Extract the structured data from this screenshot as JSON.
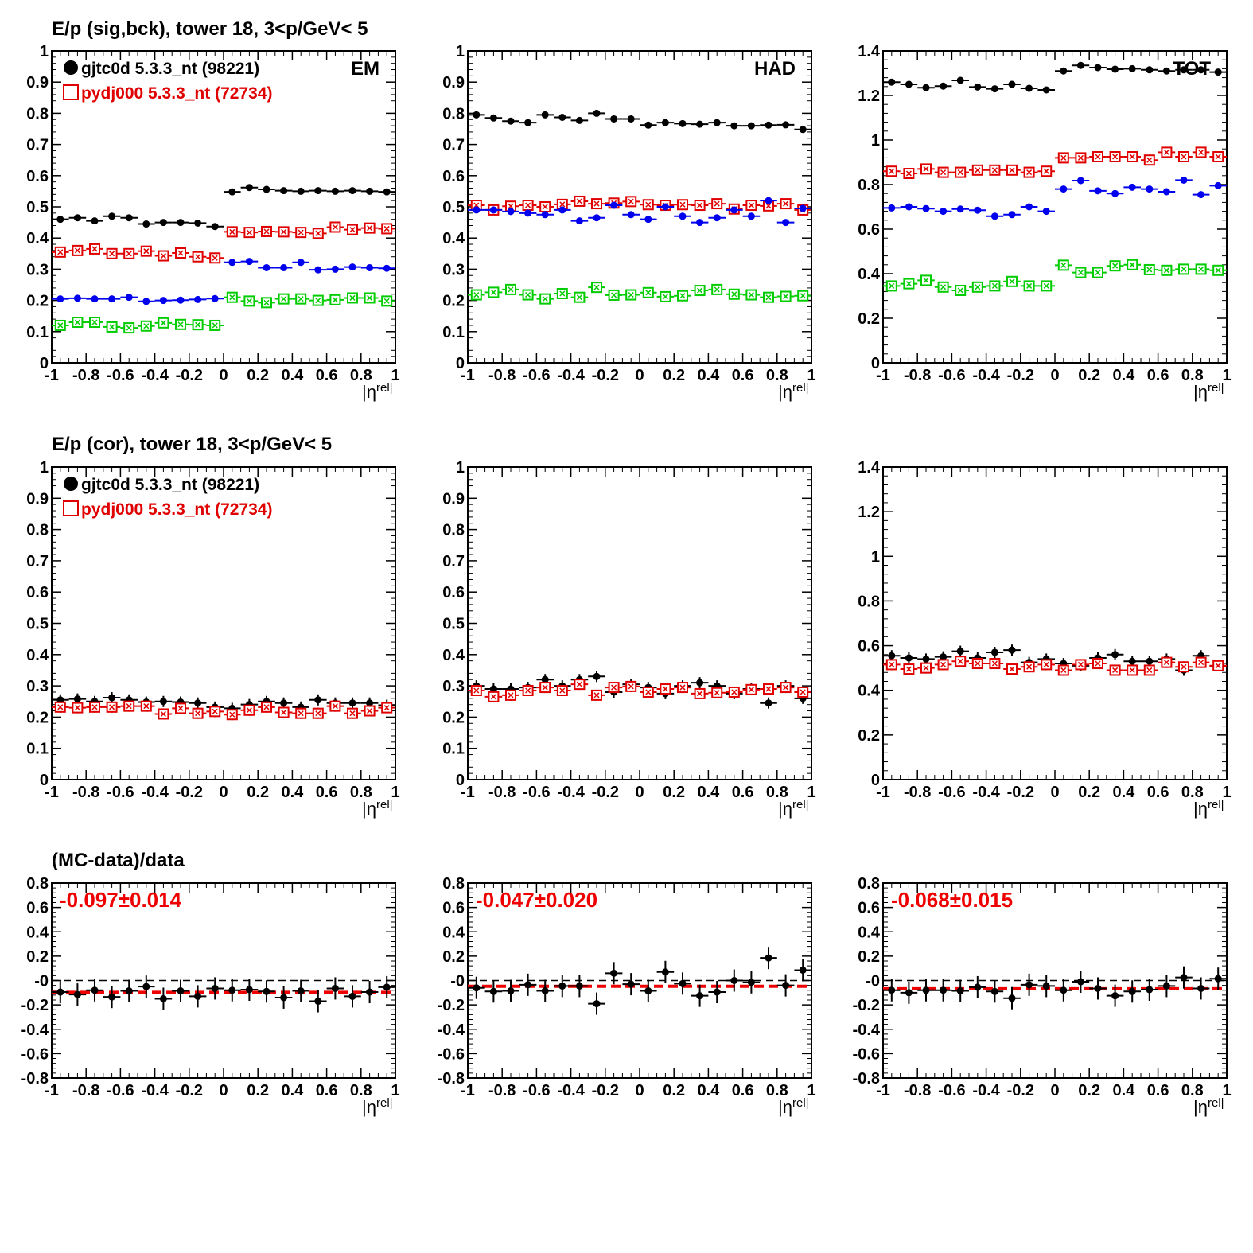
{
  "colors": {
    "data": "#000000",
    "mc": "#e00000",
    "blue": "#0000ee",
    "green": "#00cc00",
    "fit": "#ee0000"
  },
  "rows": [
    {
      "title": "E/p (sig,bck), tower 18,  3<p/GeV< 5",
      "legend": [
        {
          "marker": "filled-circle",
          "text": "gjtc0d 5.3.3_nt (98221)"
        },
        {
          "marker": "open-square",
          "text": "pydj000 5.3.3_nt (72734)"
        }
      ]
    },
    {
      "title": "E/p (cor), tower 18,  3<p/GeV< 5",
      "legend": [
        {
          "marker": "filled-circle",
          "text": "gjtc0d 5.3.3_nt (98221)"
        },
        {
          "marker": "open-square",
          "text": "pydj000 5.3.3_nt (72734)"
        }
      ]
    },
    {
      "title": "(MC-data)/data",
      "legend": []
    }
  ],
  "chart_data": [
    {
      "type": "scatter",
      "row": 0,
      "col": 0,
      "corner_label": "EM",
      "xlabel": "|η",
      "xlabel_sup": "rel|",
      "xlim": [
        -1,
        1
      ],
      "ylim": [
        0,
        1
      ],
      "xticks": [
        "-1",
        "-0.8",
        "-0.6",
        "-0.4",
        "-0.2",
        "0",
        "0.2",
        "0.4",
        "0.6",
        "0.8",
        "1"
      ],
      "yticks": [
        "0",
        "0.1",
        "0.2",
        "0.3",
        "0.4",
        "0.5",
        "0.6",
        "0.7",
        "0.8",
        "0.9",
        "1"
      ],
      "x": [
        -0.95,
        -0.85,
        -0.75,
        -0.65,
        -0.55,
        -0.45,
        -0.35,
        -0.25,
        -0.15,
        -0.05,
        0.05,
        0.15,
        0.25,
        0.35,
        0.45,
        0.55,
        0.65,
        0.75,
        0.85,
        0.95
      ],
      "series": [
        {
          "name": "gjtc0d 5.3.3_nt (98221)",
          "style": "black-dot",
          "values": [
            0.46,
            0.465,
            0.455,
            0.47,
            0.465,
            0.445,
            0.45,
            0.45,
            0.448,
            0.437,
            0.548,
            0.562,
            0.556,
            0.552,
            0.55,
            0.552,
            0.55,
            0.552,
            0.55,
            0.548
          ]
        },
        {
          "name": "pydj000 5.3.3_nt (72734)",
          "style": "red-square",
          "values": [
            0.355,
            0.36,
            0.365,
            0.35,
            0.35,
            0.358,
            0.343,
            0.352,
            0.34,
            0.336,
            0.42,
            0.418,
            0.421,
            0.42,
            0.418,
            0.415,
            0.435,
            0.427,
            0.432,
            0.43
          ]
        },
        {
          "style": "blue-dot",
          "values": [
            0.205,
            0.207,
            0.205,
            0.205,
            0.21,
            0.197,
            0.2,
            0.201,
            0.203,
            0.206,
            0.322,
            0.325,
            0.305,
            0.305,
            0.322,
            0.298,
            0.3,
            0.307,
            0.305,
            0.303
          ]
        },
        {
          "style": "green-square",
          "values": [
            0.12,
            0.13,
            0.13,
            0.115,
            0.112,
            0.118,
            0.128,
            0.123,
            0.122,
            0.12,
            0.21,
            0.198,
            0.193,
            0.205,
            0.205,
            0.2,
            0.202,
            0.208,
            0.208,
            0.198
          ]
        }
      ]
    },
    {
      "type": "scatter",
      "row": 0,
      "col": 1,
      "corner_label": "HAD",
      "xlabel": "|η",
      "xlabel_sup": "rel|",
      "xlim": [
        -1,
        1
      ],
      "ylim": [
        0,
        1
      ],
      "xticks": [
        "-1",
        "-0.8",
        "-0.6",
        "-0.4",
        "-0.2",
        "0",
        "0.2",
        "0.4",
        "0.6",
        "0.8",
        "1"
      ],
      "yticks": [
        "0",
        "0.1",
        "0.2",
        "0.3",
        "0.4",
        "0.5",
        "0.6",
        "0.7",
        "0.8",
        "0.9",
        "1"
      ],
      "x": [
        -0.95,
        -0.85,
        -0.75,
        -0.65,
        -0.55,
        -0.45,
        -0.35,
        -0.25,
        -0.15,
        -0.05,
        0.05,
        0.15,
        0.25,
        0.35,
        0.45,
        0.55,
        0.65,
        0.75,
        0.85,
        0.95
      ],
      "series": [
        {
          "name": "gjtc0d 5.3.3_nt (98221)",
          "style": "black-dot",
          "values": [
            0.795,
            0.785,
            0.775,
            0.77,
            0.795,
            0.787,
            0.777,
            0.8,
            0.782,
            0.782,
            0.762,
            0.77,
            0.767,
            0.765,
            0.77,
            0.76,
            0.76,
            0.762,
            0.763,
            0.748
          ]
        },
        {
          "name": "pydj000 5.3.3_nt (72734)",
          "style": "red-square",
          "values": [
            0.505,
            0.49,
            0.502,
            0.505,
            0.5,
            0.508,
            0.518,
            0.51,
            0.512,
            0.517,
            0.507,
            0.505,
            0.507,
            0.505,
            0.51,
            0.493,
            0.505,
            0.503,
            0.51,
            0.49
          ]
        },
        {
          "style": "blue-dot",
          "values": [
            0.49,
            0.49,
            0.485,
            0.48,
            0.475,
            0.49,
            0.455,
            0.465,
            0.505,
            0.475,
            0.46,
            0.5,
            0.47,
            0.45,
            0.465,
            0.49,
            0.47,
            0.52,
            0.45,
            0.495
          ]
        },
        {
          "style": "green-square",
          "values": [
            0.218,
            0.226,
            0.235,
            0.218,
            0.205,
            0.222,
            0.21,
            0.242,
            0.217,
            0.218,
            0.225,
            0.212,
            0.215,
            0.232,
            0.235,
            0.22,
            0.218,
            0.21,
            0.213,
            0.215
          ]
        }
      ]
    },
    {
      "type": "scatter",
      "row": 0,
      "col": 2,
      "corner_label": "TOT",
      "xlabel": "|η",
      "xlabel_sup": "rel|",
      "xlim": [
        -1,
        1
      ],
      "ylim": [
        0,
        1.4
      ],
      "xticks": [
        "-1",
        "-0.8",
        "-0.6",
        "-0.4",
        "-0.2",
        "0",
        "0.2",
        "0.4",
        "0.6",
        "0.8",
        "1"
      ],
      "yticks": [
        "0",
        "0.2",
        "0.4",
        "0.6",
        "0.8",
        "1",
        "1.2",
        "1.4"
      ],
      "x": [
        -0.95,
        -0.85,
        -0.75,
        -0.65,
        -0.55,
        -0.45,
        -0.35,
        -0.25,
        -0.15,
        -0.05,
        0.05,
        0.15,
        0.25,
        0.35,
        0.45,
        0.55,
        0.65,
        0.75,
        0.85,
        0.95
      ],
      "series": [
        {
          "name": "gjtc0d 5.3.3_nt (98221)",
          "style": "black-dot",
          "values": [
            1.26,
            1.25,
            1.235,
            1.242,
            1.268,
            1.238,
            1.23,
            1.25,
            1.232,
            1.225,
            1.31,
            1.335,
            1.325,
            1.318,
            1.32,
            1.315,
            1.31,
            1.315,
            1.315,
            1.305
          ]
        },
        {
          "name": "pydj000 5.3.3_nt (72734)",
          "style": "red-square",
          "values": [
            0.86,
            0.85,
            0.87,
            0.855,
            0.855,
            0.865,
            0.865,
            0.865,
            0.855,
            0.86,
            0.92,
            0.92,
            0.925,
            0.925,
            0.925,
            0.91,
            0.945,
            0.925,
            0.945,
            0.925
          ]
        },
        {
          "style": "blue-dot",
          "values": [
            0.695,
            0.7,
            0.692,
            0.68,
            0.69,
            0.685,
            0.658,
            0.665,
            0.7,
            0.68,
            0.78,
            0.818,
            0.772,
            0.76,
            0.788,
            0.78,
            0.768,
            0.82,
            0.755,
            0.795
          ]
        },
        {
          "style": "green-square",
          "values": [
            0.345,
            0.355,
            0.37,
            0.34,
            0.325,
            0.34,
            0.345,
            0.365,
            0.345,
            0.345,
            0.438,
            0.405,
            0.405,
            0.435,
            0.44,
            0.418,
            0.415,
            0.42,
            0.42,
            0.415
          ]
        }
      ]
    },
    {
      "type": "scatter",
      "row": 1,
      "col": 0,
      "xlabel": "|η",
      "xlabel_sup": "rel|",
      "xlim": [
        -1,
        1
      ],
      "ylim": [
        0,
        1
      ],
      "xticks": [
        "-1",
        "-0.8",
        "-0.6",
        "-0.4",
        "-0.2",
        "0",
        "0.2",
        "0.4",
        "0.6",
        "0.8",
        "1"
      ],
      "yticks": [
        "0",
        "0.1",
        "0.2",
        "0.3",
        "0.4",
        "0.5",
        "0.6",
        "0.7",
        "0.8",
        "0.9",
        "1"
      ],
      "x": [
        -0.95,
        -0.85,
        -0.75,
        -0.65,
        -0.55,
        -0.45,
        -0.35,
        -0.25,
        -0.15,
        -0.05,
        0.05,
        0.15,
        0.25,
        0.35,
        0.45,
        0.55,
        0.65,
        0.75,
        0.85,
        0.95
      ],
      "series": [
        {
          "name": "gjtc0d 5.3.3_nt (98221)",
          "style": "black-dot",
          "values": [
            0.255,
            0.258,
            0.25,
            0.262,
            0.255,
            0.248,
            0.25,
            0.248,
            0.245,
            0.232,
            0.228,
            0.24,
            0.25,
            0.245,
            0.232,
            0.255,
            0.245,
            0.245,
            0.245,
            0.238
          ]
        },
        {
          "name": "pydj000 5.3.3_nt (72734)",
          "style": "red-square",
          "values": [
            0.232,
            0.23,
            0.232,
            0.232,
            0.235,
            0.235,
            0.21,
            0.228,
            0.212,
            0.218,
            0.208,
            0.222,
            0.232,
            0.215,
            0.212,
            0.212,
            0.235,
            0.212,
            0.22,
            0.23
          ]
        }
      ]
    },
    {
      "type": "scatter",
      "row": 1,
      "col": 1,
      "xlabel": "|η",
      "xlabel_sup": "rel|",
      "xlim": [
        -1,
        1
      ],
      "ylim": [
        0,
        1
      ],
      "xticks": [
        "-1",
        "-0.8",
        "-0.6",
        "-0.4",
        "-0.2",
        "0",
        "0.2",
        "0.4",
        "0.6",
        "0.8",
        "1"
      ],
      "yticks": [
        "0",
        "0.1",
        "0.2",
        "0.3",
        "0.4",
        "0.5",
        "0.6",
        "0.7",
        "0.8",
        "0.9",
        "1"
      ],
      "x": [
        -0.95,
        -0.85,
        -0.75,
        -0.65,
        -0.55,
        -0.45,
        -0.35,
        -0.25,
        -0.15,
        -0.05,
        0.05,
        0.15,
        0.25,
        0.35,
        0.45,
        0.55,
        0.65,
        0.75,
        0.85,
        0.95
      ],
      "series": [
        {
          "name": "gjtc0d 5.3.3_nt (98221)",
          "style": "black-dot",
          "values": [
            0.3,
            0.29,
            0.29,
            0.295,
            0.32,
            0.3,
            0.32,
            0.33,
            0.28,
            0.305,
            0.295,
            0.275,
            0.3,
            0.31,
            0.3,
            0.275,
            0.29,
            0.245,
            0.3,
            0.26
          ]
        },
        {
          "name": "pydj000 5.3.3_nt (72734)",
          "style": "red-square",
          "values": [
            0.285,
            0.265,
            0.27,
            0.285,
            0.295,
            0.285,
            0.305,
            0.27,
            0.295,
            0.298,
            0.28,
            0.29,
            0.295,
            0.275,
            0.278,
            0.28,
            0.288,
            0.29,
            0.295,
            0.28
          ]
        }
      ]
    },
    {
      "type": "scatter",
      "row": 1,
      "col": 2,
      "xlabel": "|η",
      "xlabel_sup": "rel|",
      "xlim": [
        -1,
        1
      ],
      "ylim": [
        0,
        1.4
      ],
      "xticks": [
        "-1",
        "-0.8",
        "-0.6",
        "-0.4",
        "-0.2",
        "0",
        "0.2",
        "0.4",
        "0.6",
        "0.8",
        "1"
      ],
      "yticks": [
        "0",
        "0.2",
        "0.4",
        "0.6",
        "0.8",
        "1",
        "1.2",
        "1.4"
      ],
      "x": [
        -0.95,
        -0.85,
        -0.75,
        -0.65,
        -0.55,
        -0.45,
        -0.35,
        -0.25,
        -0.15,
        -0.05,
        0.05,
        0.15,
        0.25,
        0.35,
        0.45,
        0.55,
        0.65,
        0.75,
        0.85,
        0.95
      ],
      "series": [
        {
          "name": "gjtc0d 5.3.3_nt (98221)",
          "style": "black-dot",
          "values": [
            0.555,
            0.545,
            0.54,
            0.55,
            0.575,
            0.545,
            0.57,
            0.58,
            0.525,
            0.54,
            0.52,
            0.51,
            0.545,
            0.56,
            0.53,
            0.53,
            0.54,
            0.49,
            0.555,
            0.51
          ]
        },
        {
          "name": "pydj000 5.3.3_nt (72734)",
          "style": "red-square",
          "values": [
            0.515,
            0.495,
            0.5,
            0.515,
            0.53,
            0.52,
            0.52,
            0.495,
            0.505,
            0.515,
            0.49,
            0.515,
            0.52,
            0.49,
            0.49,
            0.49,
            0.525,
            0.505,
            0.525,
            0.51
          ]
        }
      ]
    },
    {
      "type": "scatter",
      "row": 2,
      "col": 0,
      "fit_label": "-0.097±0.014",
      "fit_value": -0.097,
      "xlabel": "|η",
      "xlabel_sup": "rel|",
      "xlim": [
        -1,
        1
      ],
      "ylim": [
        -0.8,
        0.8
      ],
      "xticks": [
        "-1",
        "-0.8",
        "-0.6",
        "-0.4",
        "-0.2",
        "0",
        "0.2",
        "0.4",
        "0.6",
        "0.8",
        "1"
      ],
      "yticks": [
        "-0.8",
        "-0.6",
        "-0.4",
        "-0.2",
        "-0",
        "0.2",
        "0.4",
        "0.6",
        "0.8"
      ],
      "x": [
        -0.95,
        -0.85,
        -0.75,
        -0.65,
        -0.55,
        -0.45,
        -0.35,
        -0.25,
        -0.15,
        -0.05,
        0.05,
        0.15,
        0.25,
        0.35,
        0.45,
        0.55,
        0.65,
        0.75,
        0.85,
        0.95
      ],
      "series": [
        {
          "style": "black-err",
          "values": [
            -0.095,
            -0.115,
            -0.08,
            -0.135,
            -0.085,
            -0.05,
            -0.15,
            -0.085,
            -0.13,
            -0.065,
            -0.08,
            -0.075,
            -0.09,
            -0.14,
            -0.085,
            -0.17,
            -0.065,
            -0.13,
            -0.095,
            -0.055
          ]
        }
      ]
    },
    {
      "type": "scatter",
      "row": 2,
      "col": 1,
      "fit_label": "-0.047±0.020",
      "fit_value": -0.047,
      "xlabel": "|η",
      "xlabel_sup": "rel|",
      "xlim": [
        -1,
        1
      ],
      "ylim": [
        -0.8,
        0.8
      ],
      "xticks": [
        "-1",
        "-0.8",
        "-0.6",
        "-0.4",
        "-0.2",
        "0",
        "0.2",
        "0.4",
        "0.6",
        "0.8",
        "1"
      ],
      "yticks": [
        "-0.8",
        "-0.6",
        "-0.4",
        "-0.2",
        "-0",
        "0.2",
        "0.4",
        "0.6",
        "0.8"
      ],
      "x": [
        -0.95,
        -0.85,
        -0.75,
        -0.65,
        -0.55,
        -0.45,
        -0.35,
        -0.25,
        -0.15,
        -0.05,
        0.05,
        0.15,
        0.25,
        0.35,
        0.45,
        0.55,
        0.65,
        0.75,
        0.85,
        0.95
      ],
      "series": [
        {
          "style": "black-err",
          "values": [
            -0.06,
            -0.09,
            -0.085,
            -0.035,
            -0.085,
            -0.045,
            -0.045,
            -0.19,
            0.06,
            -0.03,
            -0.085,
            0.07,
            -0.025,
            -0.125,
            -0.095,
            0.0,
            -0.015,
            0.185,
            -0.04,
            0.085
          ]
        }
      ]
    },
    {
      "type": "scatter",
      "row": 2,
      "col": 2,
      "fit_label": "-0.068±0.015",
      "fit_value": -0.068,
      "xlabel": "|η",
      "xlabel_sup": "rel|",
      "xlim": [
        -1,
        1
      ],
      "ylim": [
        -0.8,
        0.8
      ],
      "xticks": [
        "-1",
        "-0.8",
        "-0.6",
        "-0.4",
        "-0.2",
        "0",
        "0.2",
        "0.4",
        "0.6",
        "0.8",
        "1"
      ],
      "yticks": [
        "-0.8",
        "-0.6",
        "-0.4",
        "-0.2",
        "-0",
        "0.2",
        "0.4",
        "0.6",
        "0.8"
      ],
      "x": [
        -0.95,
        -0.85,
        -0.75,
        -0.65,
        -0.55,
        -0.45,
        -0.35,
        -0.25,
        -0.15,
        -0.05,
        0.05,
        0.15,
        0.25,
        0.35,
        0.45,
        0.55,
        0.65,
        0.75,
        0.85,
        0.95
      ],
      "series": [
        {
          "style": "black-err",
          "values": [
            -0.08,
            -0.1,
            -0.08,
            -0.08,
            -0.085,
            -0.055,
            -0.09,
            -0.145,
            -0.035,
            -0.045,
            -0.08,
            -0.01,
            -0.065,
            -0.125,
            -0.09,
            -0.075,
            -0.045,
            0.025,
            -0.065,
            0.015
          ]
        }
      ]
    }
  ]
}
